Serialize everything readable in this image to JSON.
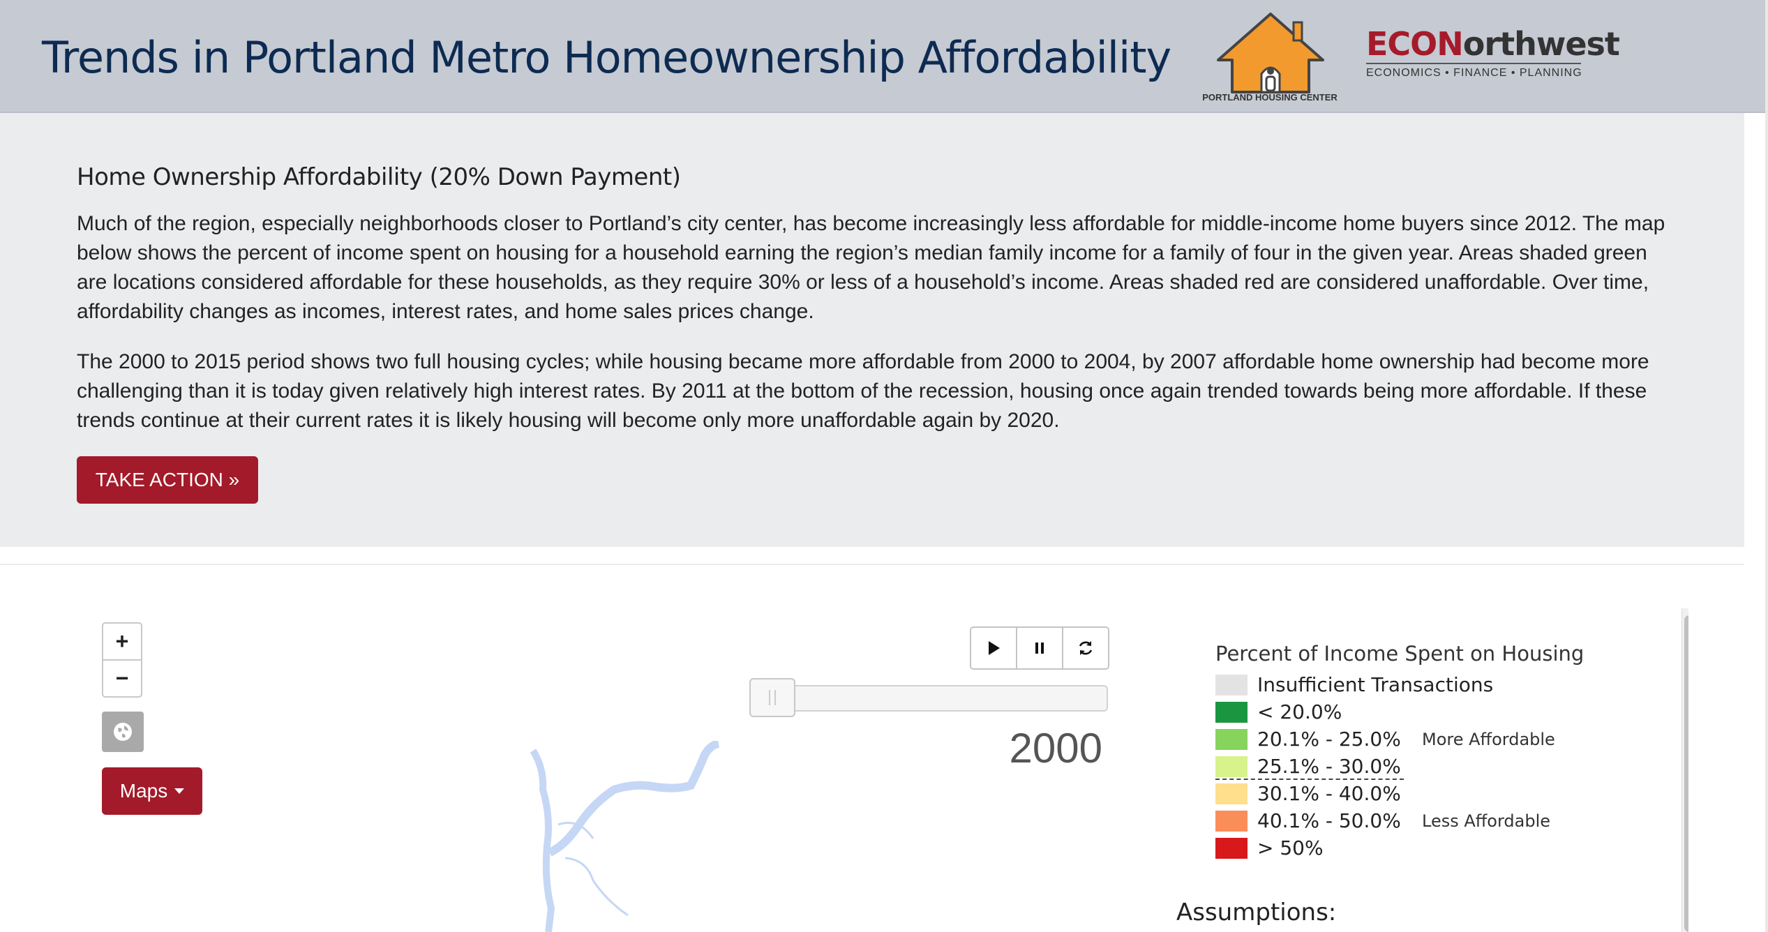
{
  "header": {
    "title": "Trends in Portland Metro Homeownership Affordability",
    "partner_logo_caption": "PORTLAND HOUSING CENTER",
    "econ_logo": {
      "red_part": "ECON",
      "dark_part": "orthwest",
      "tagline": "ECONOMICS • FINANCE • PLANNING"
    }
  },
  "intro": {
    "heading": "Home Ownership Affordability (20% Down Payment)",
    "paragraph1": "Much of the region, especially neighborhoods closer to Portland’s city center, has become increasingly less affordable for middle-income home buyers since 2012. The map below shows the percent of income spent on housing for a household earning the region’s median family income for a family of four in the given year. Areas shaded green are locations considered affordable for these households, as they require 30% or less of a household’s income. Areas shaded red are considered unaffordable. Over time, affordability changes as incomes, interest rates, and home sales prices change.",
    "paragraph2": "The 2000 to 2015 period shows two full housing cycles; while housing became more affordable from 2000 to 2004, by 2007 affordable home ownership had become more challenging than it is today given relatively high interest rates. By 2011 at the bottom of the recession, housing once again trended towards being more affordable. If these trends continue at their current rates it is likely housing will become only more unaffordable again by 2020.",
    "cta_label": "TAKE ACTION »"
  },
  "map": {
    "zoom_in_label": "+",
    "zoom_out_label": "−",
    "maps_button_label": "Maps",
    "year": "2000",
    "player": {
      "play_icon": "play-icon",
      "pause_icon": "pause-icon",
      "reset_icon": "refresh-icon"
    },
    "timeline_position": 0
  },
  "legend": {
    "title": "Percent of Income Spent on Housing",
    "items": [
      {
        "label": "Insufficient Transactions",
        "color": "#e3e3e3"
      },
      {
        "label": "< 20.0%",
        "color": "#1a9641"
      },
      {
        "label": "20.1% - 25.0%",
        "color": "#86d45c"
      },
      {
        "label": "25.1% - 30.0%",
        "color": "#d8f28c"
      },
      {
        "label": "30.1% - 40.0%",
        "color": "#fedf8c"
      },
      {
        "label": "40.1% - 50.0%",
        "color": "#fb8d5a"
      },
      {
        "label": "> 50%",
        "color": "#d7191c"
      }
    ],
    "more_affordable_note": "More Affordable",
    "less_affordable_note": "Less Affordable"
  },
  "assumptions_heading": "Assumptions:",
  "colors": {
    "header_bg": "#c6cad2",
    "title_color": "#0d2b52",
    "brand_red": "#a31a2a",
    "intro_bg": "#ebecee",
    "water": "#c5d7f5"
  }
}
